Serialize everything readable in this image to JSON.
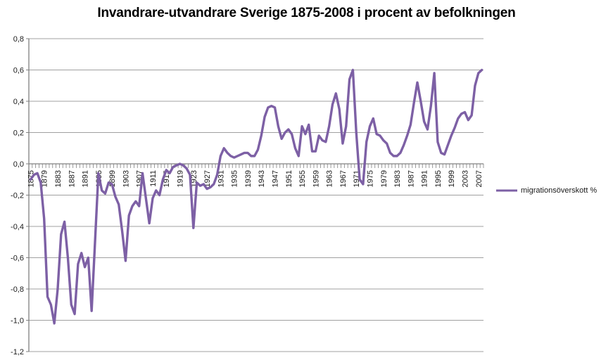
{
  "title": "Invandrare-utvandrare Sverige 1875-2008 i procent av befolkningen",
  "legend": {
    "label": "migrationsöverskott %"
  },
  "colors": {
    "line": "#7d60a5",
    "gridline": "#a0a0a0",
    "axis": "#808080",
    "text": "#1a1a1a"
  },
  "chart_data": {
    "type": "line",
    "title": "Invandrare-utvandrare Sverige 1875-2008 i procent av befolkningen",
    "xlabel": "",
    "ylabel": "",
    "legend_position": "right",
    "grid": true,
    "ylim": [
      -1.2,
      0.8
    ],
    "y_tick_step": 0.2,
    "y_tick_labels": [
      "0,8",
      "0,6",
      "0,4",
      "0,2",
      "0,0",
      "-0,2",
      "-0,4",
      "-0,6",
      "-0,8",
      "-1,0",
      "-1,2"
    ],
    "x_range": [
      1875,
      2008
    ],
    "x_tick_labels": [
      "1875",
      "1879",
      "1883",
      "1887",
      "1891",
      "1895",
      "1899",
      "1903",
      "1907",
      "1911",
      "1915",
      "1919",
      "1923",
      "1927",
      "1931",
      "1935",
      "1939",
      "1943",
      "1947",
      "1951",
      "1955",
      "1959",
      "1963",
      "1967",
      "1971",
      "1975",
      "1979",
      "1983",
      "1987",
      "1991",
      "1995",
      "1999",
      "2003",
      "2007"
    ],
    "series": [
      {
        "name": "migrationsöverskott %",
        "x_start": 1875,
        "values": [
          -0.1,
          -0.07,
          -0.06,
          -0.12,
          -0.35,
          -0.85,
          -0.9,
          -1.02,
          -0.8,
          -0.45,
          -0.37,
          -0.6,
          -0.9,
          -0.96,
          -0.64,
          -0.57,
          -0.66,
          -0.6,
          -0.94,
          -0.5,
          -0.06,
          -0.17,
          -0.19,
          -0.12,
          -0.13,
          -0.21,
          -0.26,
          -0.43,
          -0.62,
          -0.33,
          -0.27,
          -0.24,
          -0.27,
          -0.06,
          -0.22,
          -0.38,
          -0.22,
          -0.17,
          -0.2,
          -0.1,
          -0.04,
          -0.06,
          -0.02,
          -0.01,
          0.0,
          -0.01,
          -0.03,
          -0.07,
          -0.41,
          -0.12,
          -0.14,
          -0.13,
          -0.16,
          -0.15,
          -0.13,
          -0.07,
          0.05,
          0.1,
          0.07,
          0.05,
          0.04,
          0.05,
          0.06,
          0.07,
          0.07,
          0.05,
          0.05,
          0.09,
          0.18,
          0.3,
          0.36,
          0.37,
          0.36,
          0.24,
          0.16,
          0.2,
          0.22,
          0.19,
          0.1,
          0.05,
          0.24,
          0.19,
          0.25,
          0.08,
          0.08,
          0.18,
          0.15,
          0.14,
          0.24,
          0.38,
          0.45,
          0.35,
          0.13,
          0.24,
          0.54,
          0.6,
          0.2,
          -0.1,
          -0.13,
          0.14,
          0.24,
          0.29,
          0.19,
          0.18,
          0.15,
          0.13,
          0.07,
          0.05,
          0.05,
          0.07,
          0.12,
          0.18,
          0.25,
          0.39,
          0.52,
          0.4,
          0.27,
          0.22,
          0.37,
          0.58,
          0.14,
          0.07,
          0.06,
          0.12,
          0.18,
          0.23,
          0.29,
          0.32,
          0.33,
          0.28,
          0.31,
          0.5,
          0.58,
          0.6
        ]
      }
    ]
  }
}
